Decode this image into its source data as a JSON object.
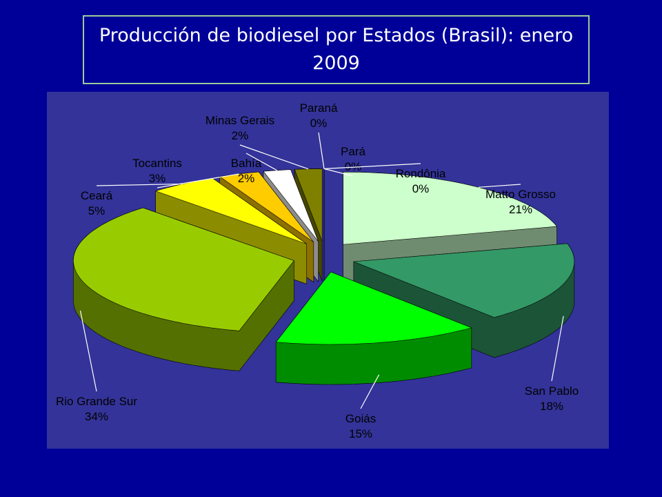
{
  "chart_data": {
    "type": "pie",
    "title": "Producción de biodiesel por Estados (Brasil): enero 2009",
    "categories": [
      "Matto Grosso",
      "San Pablo",
      "Goiás",
      "Rio Grande Sur",
      "Ceará",
      "Tocantins",
      "Bahía",
      "Minas Gerais",
      "Paraná",
      "Pará",
      "Rondônia"
    ],
    "values": [
      21,
      18,
      15,
      34,
      5,
      3,
      2,
      2,
      0,
      0,
      0
    ],
    "value_labels": [
      "21%",
      "18%",
      "15%",
      "34%",
      "5%",
      "3%",
      "2%",
      "2%",
      "0%",
      "0%",
      "0%"
    ],
    "colors": [
      "#ccffcc",
      "#339966",
      "#00ff00",
      "#99cc00",
      "#ffff00",
      "#ffcc00",
      "#ffffff",
      "#808000",
      "#333399",
      "#993366",
      "#666699"
    ]
  }
}
